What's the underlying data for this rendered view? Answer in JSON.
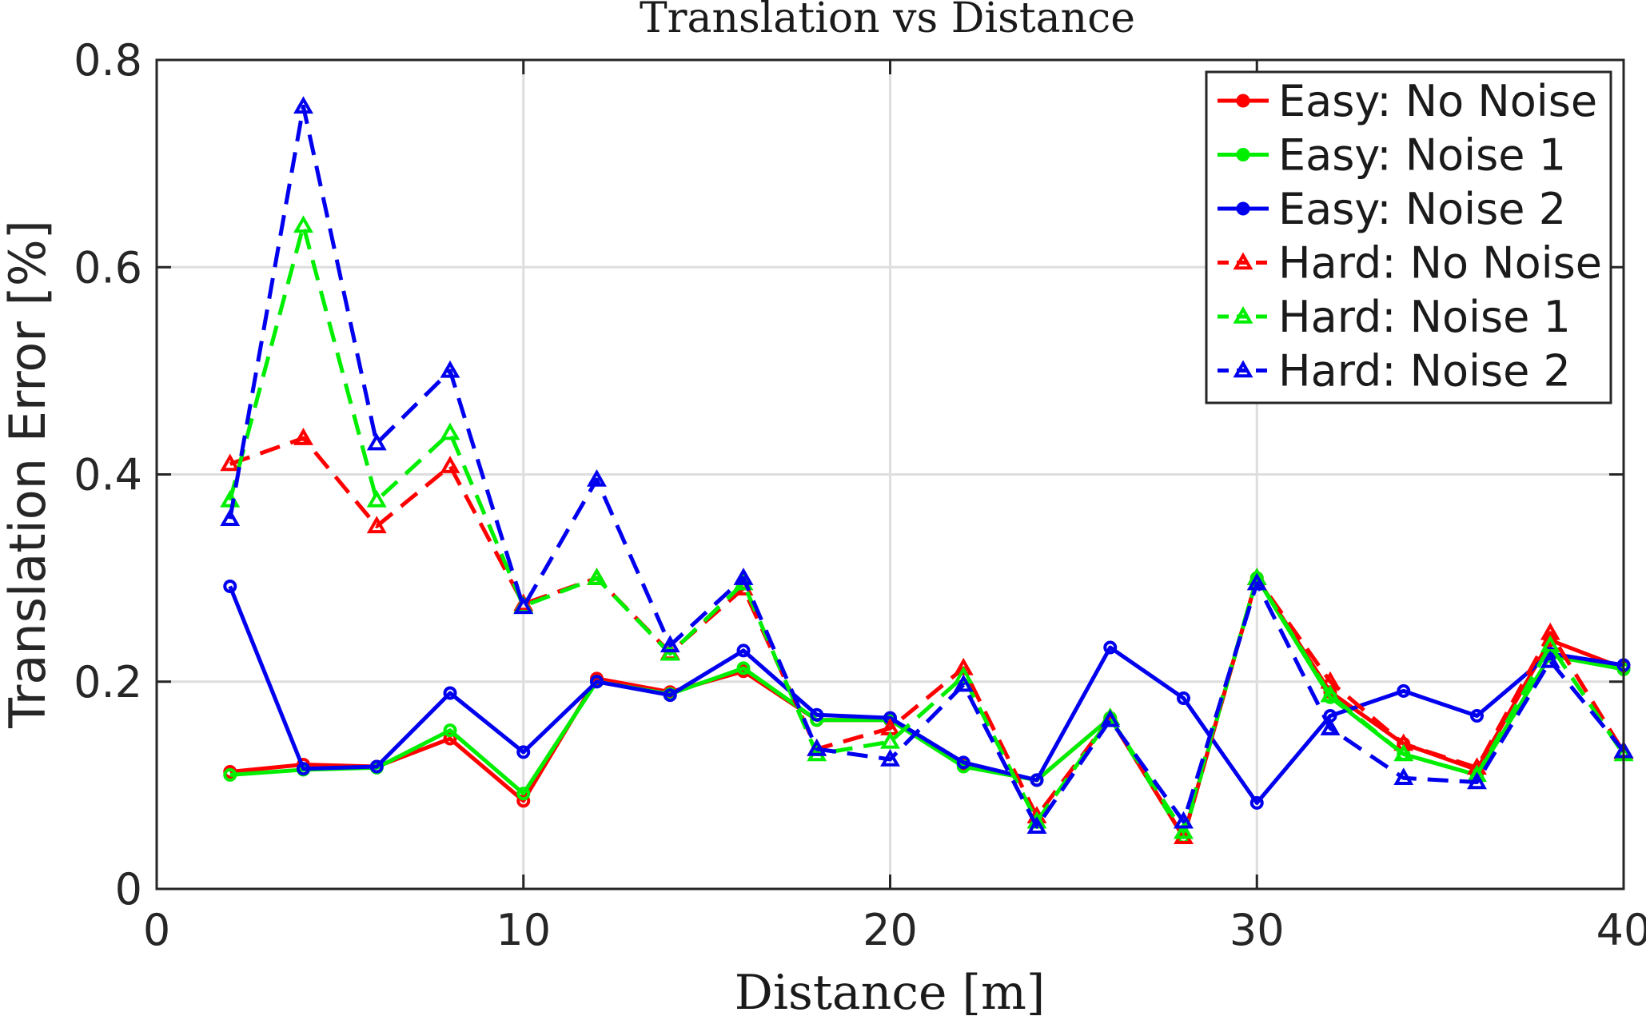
{
  "chart_data": {
    "type": "line",
    "title": "Translation vs Distance",
    "xlabel": "Distance [m]",
    "ylabel": "Translation Error [%]",
    "xlim": [
      0,
      40
    ],
    "ylim": [
      0,
      0.8
    ],
    "xticks": [
      0,
      10,
      20,
      30,
      40
    ],
    "xtick_labels": [
      "0",
      "10",
      "20",
      "30",
      "40"
    ],
    "yticks": [
      0,
      0.2,
      0.4,
      0.6,
      0.8
    ],
    "ytick_labels": [
      "0",
      "0.2",
      "0.4",
      "0.6",
      "0.8"
    ],
    "grid": true,
    "legend_position": "top-right",
    "x": [
      2,
      4,
      6,
      8,
      10,
      12,
      14,
      16,
      18,
      20,
      22,
      24,
      26,
      28,
      30,
      32,
      34,
      36,
      38,
      40
    ],
    "series": [
      {
        "name": "Easy: No Noise",
        "color": "#ff0000",
        "dash": false,
        "marker": "circle",
        "values": [
          0.113,
          0.12,
          0.118,
          0.145,
          0.085,
          0.203,
          0.19,
          0.21,
          0.163,
          0.163,
          0.12,
          0.105,
          0.165,
          0.05,
          0.3,
          0.19,
          0.14,
          0.115,
          0.24,
          0.213
        ]
      },
      {
        "name": "Easy: Noise 1",
        "color": "#00ee00",
        "dash": false,
        "marker": "circle",
        "values": [
          0.11,
          0.115,
          0.117,
          0.153,
          0.092,
          0.2,
          0.188,
          0.213,
          0.163,
          0.163,
          0.118,
          0.105,
          0.165,
          0.05,
          0.3,
          0.185,
          0.13,
          0.11,
          0.225,
          0.212
        ]
      },
      {
        "name": "Easy: Noise 2",
        "color": "#0000ee",
        "dash": false,
        "marker": "circle",
        "values": [
          0.292,
          0.116,
          0.118,
          0.189,
          0.132,
          0.2,
          0.187,
          0.23,
          0.168,
          0.165,
          0.122,
          0.105,
          0.233,
          0.184,
          0.083,
          0.167,
          0.191,
          0.167,
          0.227,
          0.216
        ]
      },
      {
        "name": "Hard: No Noise",
        "color": "#ff0000",
        "dash": true,
        "marker": "triangle",
        "values": [
          0.41,
          0.435,
          0.35,
          0.408,
          0.275,
          0.3,
          0.228,
          0.29,
          0.135,
          0.155,
          0.213,
          0.07,
          0.165,
          0.05,
          0.3,
          0.2,
          0.14,
          0.117,
          0.247,
          0.132
        ]
      },
      {
        "name": "Hard: Noise 1",
        "color": "#00ee00",
        "dash": true,
        "marker": "triangle",
        "values": [
          0.375,
          0.64,
          0.375,
          0.44,
          0.273,
          0.3,
          0.227,
          0.295,
          0.13,
          0.142,
          0.205,
          0.065,
          0.165,
          0.055,
          0.3,
          0.187,
          0.13,
          0.11,
          0.235,
          0.13
        ]
      },
      {
        "name": "Hard: Noise 2",
        "color": "#0000ee",
        "dash": true,
        "marker": "triangle",
        "values": [
          0.357,
          0.755,
          0.43,
          0.5,
          0.272,
          0.395,
          0.235,
          0.3,
          0.135,
          0.125,
          0.197,
          0.06,
          0.163,
          0.065,
          0.295,
          0.155,
          0.107,
          0.103,
          0.22,
          0.133
        ]
      }
    ]
  }
}
